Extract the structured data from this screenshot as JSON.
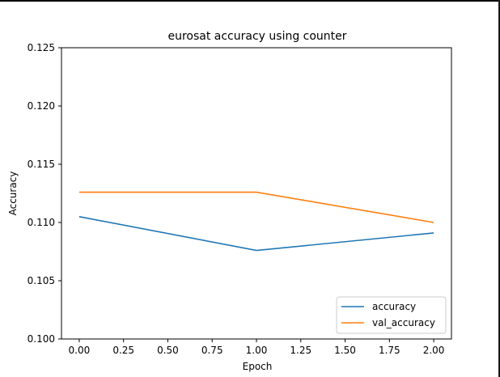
{
  "chart_data": {
    "type": "line",
    "title": "eurosat accuracy using counter",
    "xlabel": "Epoch",
    "ylabel": "Accuracy",
    "xlim": [
      -0.1,
      2.1
    ],
    "ylim": [
      0.1,
      0.125
    ],
    "x_ticks": [
      0.0,
      0.25,
      0.5,
      0.75,
      1.0,
      1.25,
      1.5,
      1.75,
      2.0
    ],
    "x_tick_labels": [
      "0.00",
      "0.25",
      "0.50",
      "0.75",
      "1.00",
      "1.25",
      "1.50",
      "1.75",
      "2.00"
    ],
    "y_ticks": [
      0.1,
      0.105,
      0.11,
      0.115,
      0.12,
      0.125
    ],
    "y_tick_labels": [
      "0.100",
      "0.105",
      "0.110",
      "0.115",
      "0.120",
      "0.125"
    ],
    "x": [
      0,
      1,
      2
    ],
    "series": [
      {
        "name": "accuracy",
        "values": [
          0.1105,
          0.1076,
          0.1091
        ],
        "color": "#1f77b4"
      },
      {
        "name": "val_accuracy",
        "values": [
          0.1126,
          0.1126,
          0.11
        ],
        "color": "#ff7f0e"
      }
    ],
    "grid": false,
    "legend_position": "lower-right"
  }
}
